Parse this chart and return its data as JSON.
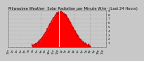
{
  "title": "Milwaukee Weather  Solar Radiation per Minute W/m² (Last 24 Hours)",
  "background_color": "#c8c8c8",
  "plot_bg_color": "#c8c8c8",
  "fill_color": "#ff0000",
  "line_color": "#cc0000",
  "peak_line_color": "#ffffff",
  "grid_color": "#888888",
  "num_points": 1440,
  "peak_hour": 12.8,
  "peak_value": 870,
  "y_max": 900,
  "y_ticks": [
    100,
    200,
    300,
    400,
    500,
    600,
    700,
    800,
    900
  ],
  "y_tick_labels": [
    "1",
    "2",
    "3",
    "4",
    "5",
    "6",
    "7",
    "8",
    "9"
  ],
  "start_hour": 5.8,
  "end_hour": 20.2,
  "title_fontsize": 3.8,
  "tick_fontsize": 2.8,
  "ytick_fontsize": 2.8,
  "grid_hours": [
    8,
    12,
    16,
    20
  ],
  "sigma": 2.8
}
